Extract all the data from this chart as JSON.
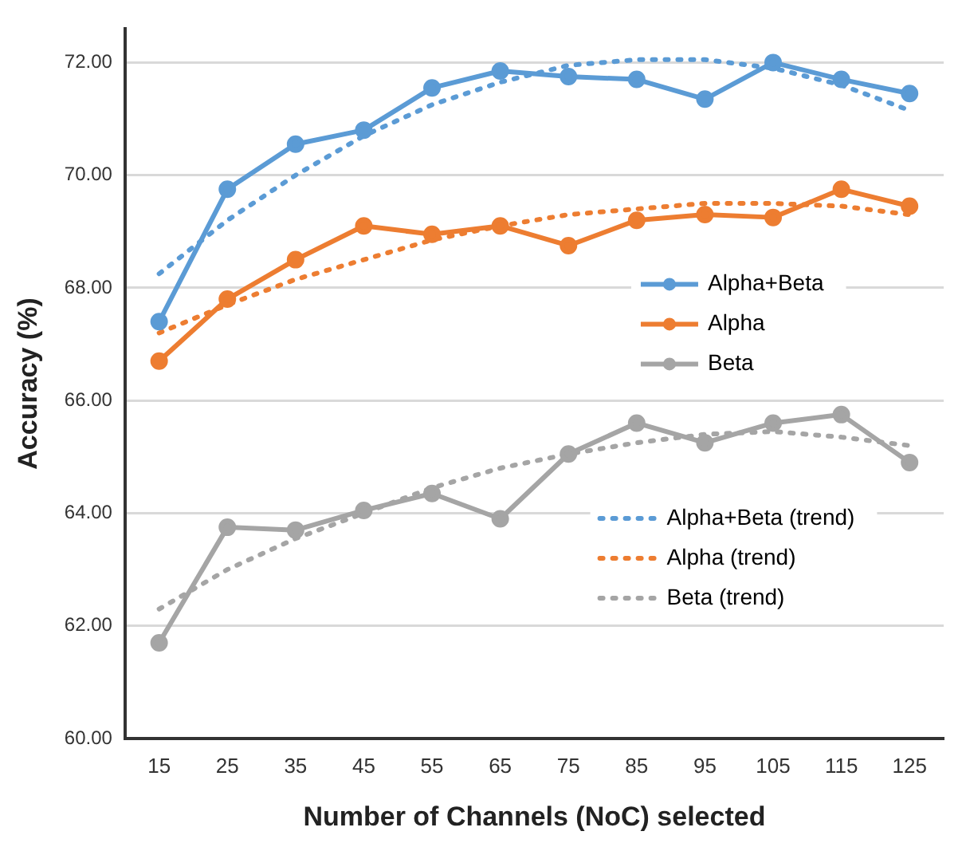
{
  "chart_data": {
    "type": "line",
    "xlabel": "Number of Channels (NoC) selected",
    "ylabel": "Accuracy (%)",
    "categories": [
      "15",
      "25",
      "35",
      "45",
      "55",
      "65",
      "75",
      "85",
      "95",
      "105",
      "115",
      "125"
    ],
    "ylim": [
      60,
      72.6
    ],
    "yticks": [
      {
        "value": 60,
        "label": "60.00"
      },
      {
        "value": 62,
        "label": "62.00"
      },
      {
        "value": 64,
        "label": "64.00"
      },
      {
        "value": 66,
        "label": "66.00"
      },
      {
        "value": 68,
        "label": "68.00"
      },
      {
        "value": 70,
        "label": "70.00"
      },
      {
        "value": 72,
        "label": "72.00"
      }
    ],
    "grid": "y",
    "legend": "right",
    "series": [
      {
        "name": "Alpha+Beta",
        "color": "#5b9bd5",
        "marker": "circle",
        "line_style": "solid",
        "values": [
          67.4,
          69.75,
          70.55,
          70.8,
          71.55,
          71.85,
          71.75,
          71.7,
          71.35,
          72.0,
          71.7,
          71.45
        ]
      },
      {
        "name": "Alpha",
        "color": "#ed7d31",
        "marker": "circle",
        "line_style": "solid",
        "values": [
          66.7,
          67.8,
          68.5,
          69.1,
          68.95,
          69.1,
          68.75,
          69.2,
          69.3,
          69.25,
          69.75,
          69.45
        ]
      },
      {
        "name": "Beta",
        "color": "#a5a5a5",
        "marker": "circle",
        "line_style": "solid",
        "values": [
          61.7,
          63.75,
          63.7,
          64.05,
          64.35,
          63.9,
          65.05,
          65.6,
          65.25,
          65.6,
          65.75,
          64.9
        ]
      },
      {
        "name": "Alpha+Beta (trend)",
        "color": "#5b9bd5",
        "marker": "none",
        "line_style": "dotted",
        "values": [
          68.25,
          69.2,
          70.0,
          70.7,
          71.25,
          71.65,
          71.95,
          72.05,
          72.05,
          71.9,
          71.6,
          71.15
        ]
      },
      {
        "name": "Alpha (trend)",
        "color": "#ed7d31",
        "marker": "none",
        "line_style": "dotted",
        "values": [
          67.2,
          67.7,
          68.15,
          68.5,
          68.85,
          69.1,
          69.3,
          69.4,
          69.5,
          69.5,
          69.45,
          69.3
        ]
      },
      {
        "name": "Beta (trend)",
        "color": "#a5a5a5",
        "marker": "none",
        "line_style": "dotted",
        "values": [
          62.3,
          63.0,
          63.55,
          64.0,
          64.45,
          64.8,
          65.05,
          65.25,
          65.4,
          65.45,
          65.35,
          65.2
        ]
      }
    ]
  }
}
